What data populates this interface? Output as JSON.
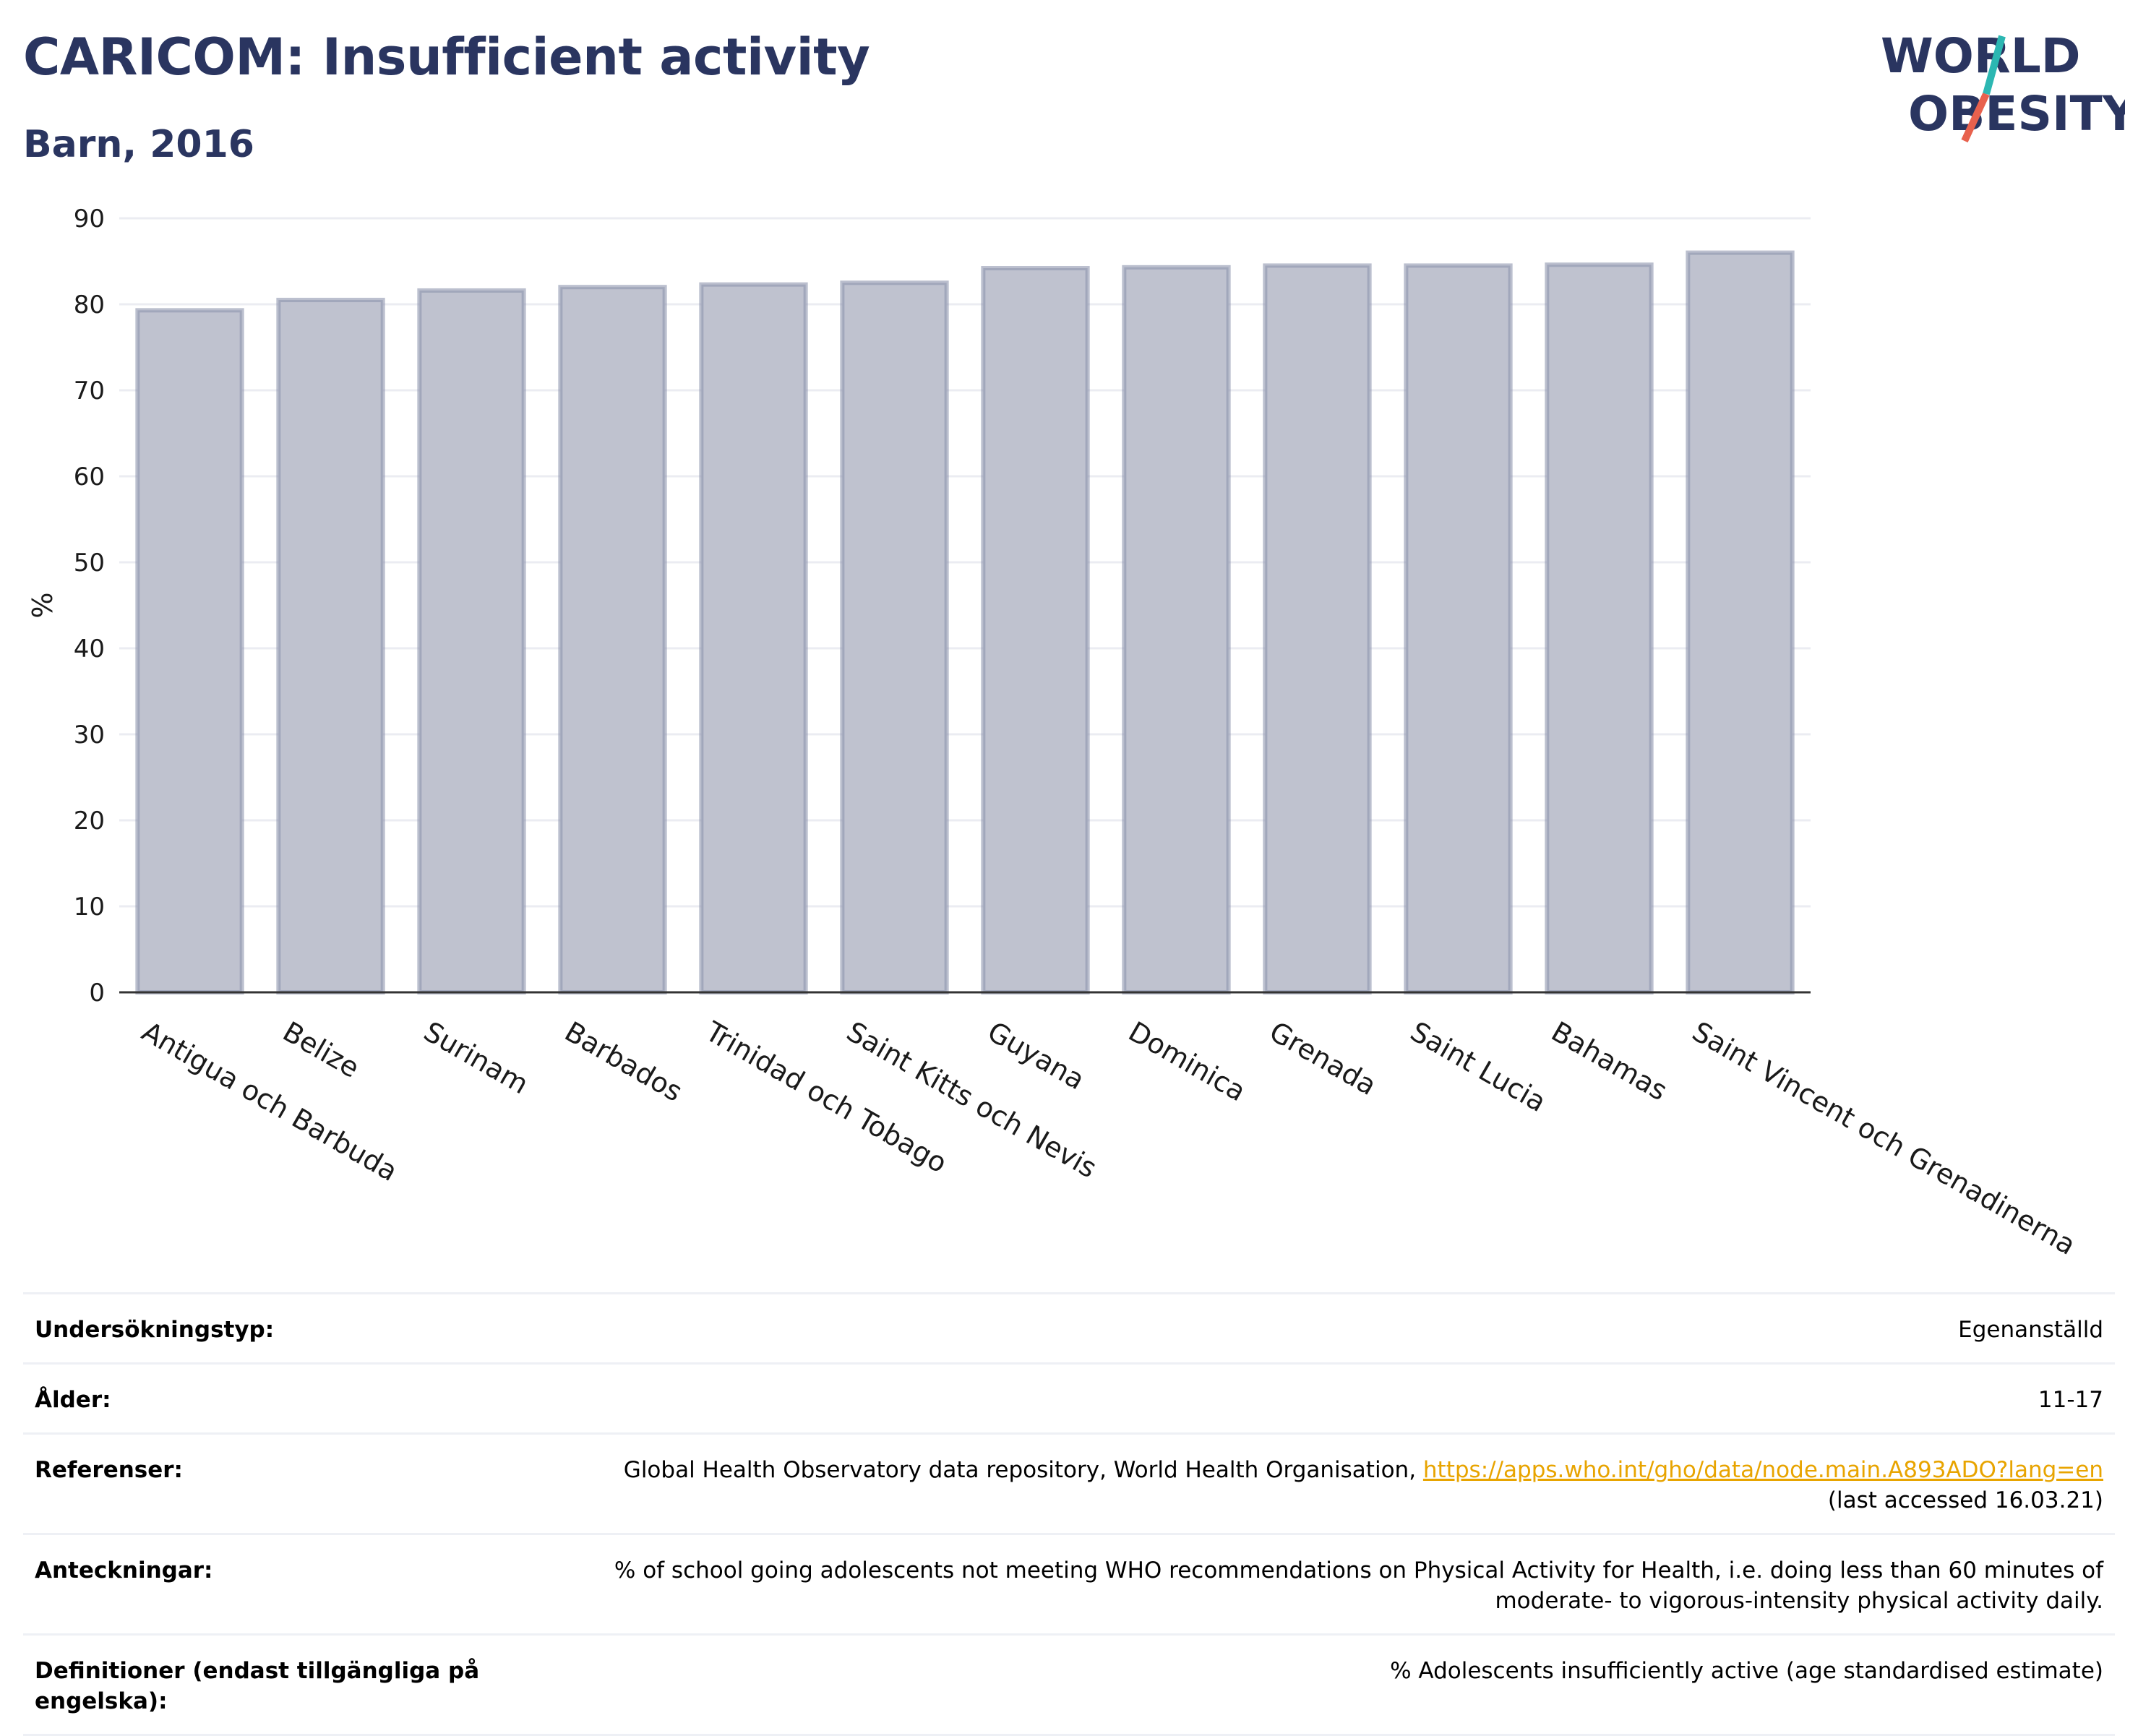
{
  "title": "CARICOM: Insufficient activity",
  "subtitle": "Barn, 2016",
  "logo": {
    "line1": "WORLD",
    "line2": "OBESITY",
    "accent_teal": "#2cb7b2",
    "accent_red": "#e8614d",
    "text_color": "#2a3560"
  },
  "chart_data": {
    "type": "bar",
    "categories": [
      "Antigua och Barbuda",
      "Belize",
      "Surinam",
      "Barbados",
      "Trinidad och Tobago",
      "Saint Kitts och Nevis",
      "Guyana",
      "Dominica",
      "Grenada",
      "Saint Lucia",
      "Bahamas",
      "Saint Vincent och Grenadinerna"
    ],
    "values": [
      79.3,
      80.5,
      81.6,
      82.0,
      82.3,
      82.5,
      84.2,
      84.3,
      84.5,
      84.5,
      84.6,
      86.0
    ],
    "ylabel": "%",
    "ylim": [
      0,
      90
    ],
    "yticks": [
      0,
      10,
      20,
      30,
      40,
      50,
      60,
      70,
      80,
      90
    ],
    "grid": true,
    "bar_fill": "#bfc2cf",
    "bar_stroke": "#8e94ad"
  },
  "info": [
    {
      "key": "Undersökningstyp:",
      "value": "Egenanställd"
    },
    {
      "key": "Ålder:",
      "value": "11-17"
    },
    {
      "key": "Referenser:",
      "value": "Global Health Observatory data repository, World Health Organisation,",
      "link": "https://apps.who.int/gho/data/node.main.A893ADO?lang=en",
      "value2": "(last accessed 16.03.21)"
    },
    {
      "key": "Anteckningar:",
      "value": "% of school going adolescents not meeting WHO recommendations on Physical Activity for Health, i.e. doing less than 60 minutes of moderate- to vigorous-intensity physical activity daily."
    },
    {
      "key": "Definitioner (endast tillgängliga på engelska):",
      "value": "% Adolescents insufficiently active (age standardised estimate)"
    }
  ]
}
